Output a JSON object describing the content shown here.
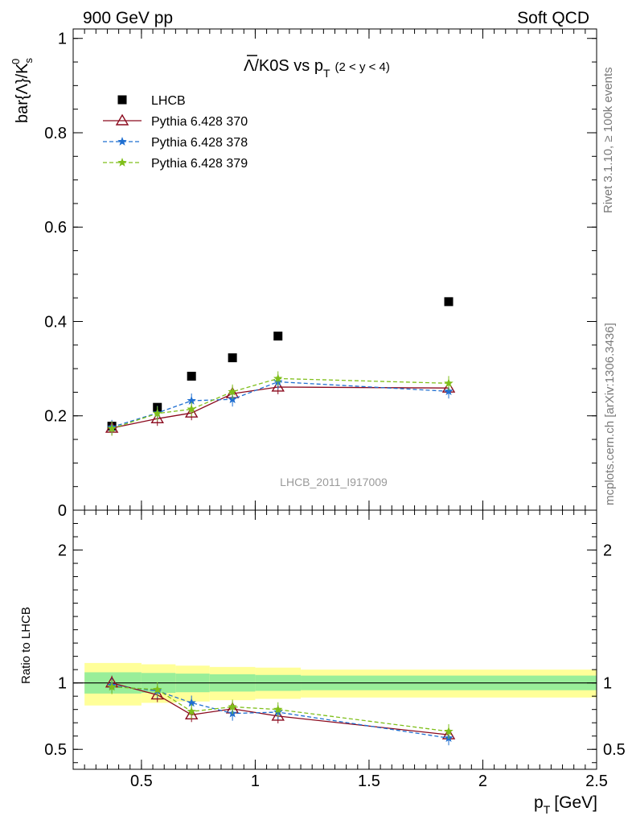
{
  "header": {
    "energy_label": "900 GeV pp",
    "process_label": "Soft QCD",
    "rivet_label": "Rivet 3.1.10, ≥ 100k events",
    "source_label": "mcplots.cern.ch [arXiv:1306.3436]",
    "analysis_label": "LHCB_2011_I917009"
  },
  "colors": {
    "lhcb": "#000000",
    "p370": "#8b0a1e",
    "p378": "#1f6fd1",
    "p379": "#7fbf1a",
    "band_outer": "#ffff99",
    "band_inner": "#99ee99"
  },
  "chart_data": [
    {
      "type": "scatter",
      "title_main": "Λ/K0S vs p",
      "title_sub": "T",
      "title_range": "(2 < y < 4)",
      "ylabel": "bar{Λ}/K",
      "ylabel_sub": "s",
      "ylabel_sup": "0",
      "xlim": [
        0.2,
        2.5
      ],
      "ylim": [
        0,
        1.02
      ],
      "y_ticks": [
        {
          "value": 0,
          "label": "0"
        },
        {
          "value": 0.2,
          "label": "0.2"
        },
        {
          "value": 0.4,
          "label": "0.4"
        },
        {
          "value": 0.6,
          "label": "0.6"
        },
        {
          "value": 0.8,
          "label": "0.8"
        },
        {
          "value": 1.0,
          "label": "1"
        }
      ],
      "legend_position": "top-left",
      "x": [
        0.37,
        0.57,
        0.72,
        0.9,
        1.1,
        1.85
      ],
      "series": [
        {
          "key": "lhcb",
          "name": "LHCB",
          "marker": "square",
          "values": [
            0.178,
            0.218,
            0.284,
            0.323,
            0.369,
            0.442
          ]
        },
        {
          "key": "p370",
          "name": "Pythia 6.428 370",
          "marker": "triangle",
          "line": "solid",
          "values": [
            0.174,
            0.194,
            0.206,
            0.247,
            0.261,
            0.259
          ]
        },
        {
          "key": "p378",
          "name": "Pythia 6.428 378",
          "marker": "star",
          "line": "dashed",
          "values": [
            0.176,
            0.206,
            0.232,
            0.235,
            0.272,
            0.252
          ]
        },
        {
          "key": "p379",
          "name": "Pythia 6.428 379",
          "marker": "star",
          "line": "dashed",
          "values": [
            0.173,
            0.205,
            0.214,
            0.251,
            0.279,
            0.269
          ]
        }
      ]
    },
    {
      "type": "line",
      "ylabel": "Ratio to LHCB",
      "xlabel": "p",
      "xlabel_sub": "T",
      "xlabel_unit": "[GeV]",
      "xlim": [
        0.2,
        2.5
      ],
      "ylim": [
        0.35,
        2.3
      ],
      "x_ticks": [
        {
          "value": 0.5,
          "label": "0.5"
        },
        {
          "value": 1.0,
          "label": "1"
        },
        {
          "value": 1.5,
          "label": "1.5"
        },
        {
          "value": 2.0,
          "label": "2"
        },
        {
          "value": 2.5,
          "label": "2.5"
        }
      ],
      "y_ticks": [
        {
          "value": 0.5,
          "label": "0.5"
        },
        {
          "value": 1.0,
          "label": "1"
        },
        {
          "value": 2.0,
          "label": "2"
        }
      ],
      "band_bins": [
        {
          "x0": 0.25,
          "x1": 0.5,
          "outer": [
            0.83,
            1.15
          ],
          "inner": [
            0.92,
            1.08
          ]
        },
        {
          "x0": 0.5,
          "x1": 0.65,
          "outer": [
            0.85,
            1.14
          ],
          "inner": [
            0.925,
            1.075
          ]
        },
        {
          "x0": 0.65,
          "x1": 0.8,
          "outer": [
            0.86,
            1.13
          ],
          "inner": [
            0.93,
            1.07
          ]
        },
        {
          "x0": 0.8,
          "x1": 1.0,
          "outer": [
            0.87,
            1.12
          ],
          "inner": [
            0.935,
            1.065
          ]
        },
        {
          "x0": 1.0,
          "x1": 1.2,
          "outer": [
            0.88,
            1.115
          ],
          "inner": [
            0.94,
            1.06
          ]
        },
        {
          "x0": 1.2,
          "x1": 2.5,
          "outer": [
            0.89,
            1.1
          ],
          "inner": [
            0.945,
            1.055
          ]
        }
      ],
      "x": [
        0.37,
        0.57,
        0.72,
        0.9,
        1.1,
        1.85
      ],
      "series": [
        {
          "key": "p370",
          "marker": "triangle",
          "line": "solid",
          "values": [
            1.0,
            0.91,
            0.76,
            0.805,
            0.75,
            0.61
          ]
        },
        {
          "key": "p378",
          "marker": "star",
          "line": "dashed",
          "values": [
            0.98,
            0.94,
            0.85,
            0.77,
            0.78,
            0.585
          ]
        },
        {
          "key": "p379",
          "marker": "star",
          "line": "dashed",
          "values": [
            0.97,
            0.95,
            0.785,
            0.82,
            0.8,
            0.635
          ]
        }
      ]
    }
  ]
}
